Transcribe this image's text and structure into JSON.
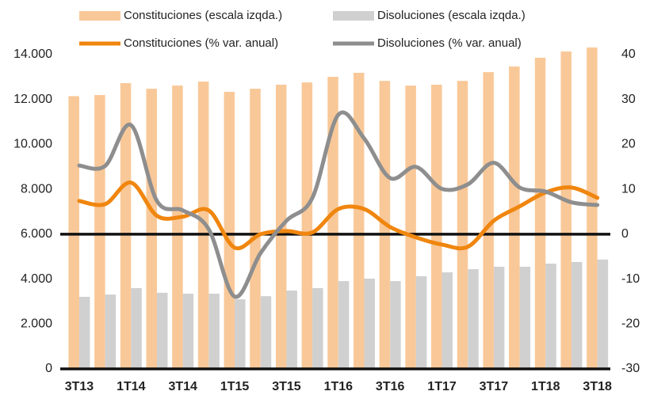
{
  "chart_data": {
    "type": "bar-line",
    "categories": [
      "3T13",
      null,
      "1T14",
      null,
      "3T14",
      null,
      "1T15",
      null,
      "3T15",
      null,
      "1T16",
      null,
      "3T16",
      null,
      "1T17",
      null,
      "3T17",
      null,
      "1T18",
      null,
      "3T18"
    ],
    "series": [
      {
        "name": "Constituciones (escala izqda.)",
        "type": "bar",
        "color": "#f9c898",
        "values": [
          12150,
          12200,
          12730,
          12480,
          12620,
          12800,
          12340,
          12480,
          12660,
          12760,
          13010,
          13190,
          12830,
          12620,
          12660,
          12830,
          13220,
          13470,
          13860,
          14140,
          14320
        ]
      },
      {
        "name": "Disoluciones (escala izqda.)",
        "type": "bar",
        "color": "#d0d0d0",
        "values": [
          3210,
          3310,
          3600,
          3390,
          3350,
          3350,
          3100,
          3240,
          3490,
          3600,
          3910,
          4020,
          3910,
          4130,
          4300,
          4440,
          4550,
          4550,
          4690,
          4760,
          4870
        ]
      },
      {
        "name": "Constituciones (% var. anual)",
        "type": "line",
        "axis": "y2",
        "color": "#f0860f",
        "values": [
          7.4,
          6.7,
          11.5,
          4.1,
          3.9,
          5.3,
          -3.0,
          0,
          0.7,
          0.4,
          5.6,
          5.6,
          1.6,
          -0.7,
          -2.3,
          -2.8,
          3.0,
          6.2,
          9.3,
          10.4,
          8.1
        ]
      },
      {
        "name": "Disoluciones (% var. anual)",
        "type": "line",
        "axis": "y2",
        "color": "#8e8e8e",
        "values": [
          15.3,
          15.2,
          24.3,
          7.4,
          5.3,
          1.1,
          -13.9,
          -4.2,
          3.0,
          8.1,
          26.6,
          21.3,
          12.5,
          15.0,
          10.1,
          11.1,
          15.9,
          10.4,
          9.5,
          7.1,
          6.5
        ]
      }
    ],
    "ylim": [
      0,
      14000
    ],
    "yticks": [
      0,
      {
        "value": 2000,
        "label": "2.000"
      },
      {
        "value": 4000,
        "label": "4.000"
      },
      {
        "value": 6000,
        "label": "6.000"
      },
      {
        "value": 8000,
        "label": "8.000"
      },
      {
        "value": 10000,
        "label": "10.000"
      },
      {
        "value": 12000,
        "label": "12.000"
      },
      {
        "value": 14000,
        "label": "14.000"
      }
    ],
    "y2lim": [
      -30,
      40
    ],
    "y2ticks": [
      -30,
      -20,
      -10,
      0,
      10,
      20,
      30,
      40
    ],
    "legend": "top"
  }
}
